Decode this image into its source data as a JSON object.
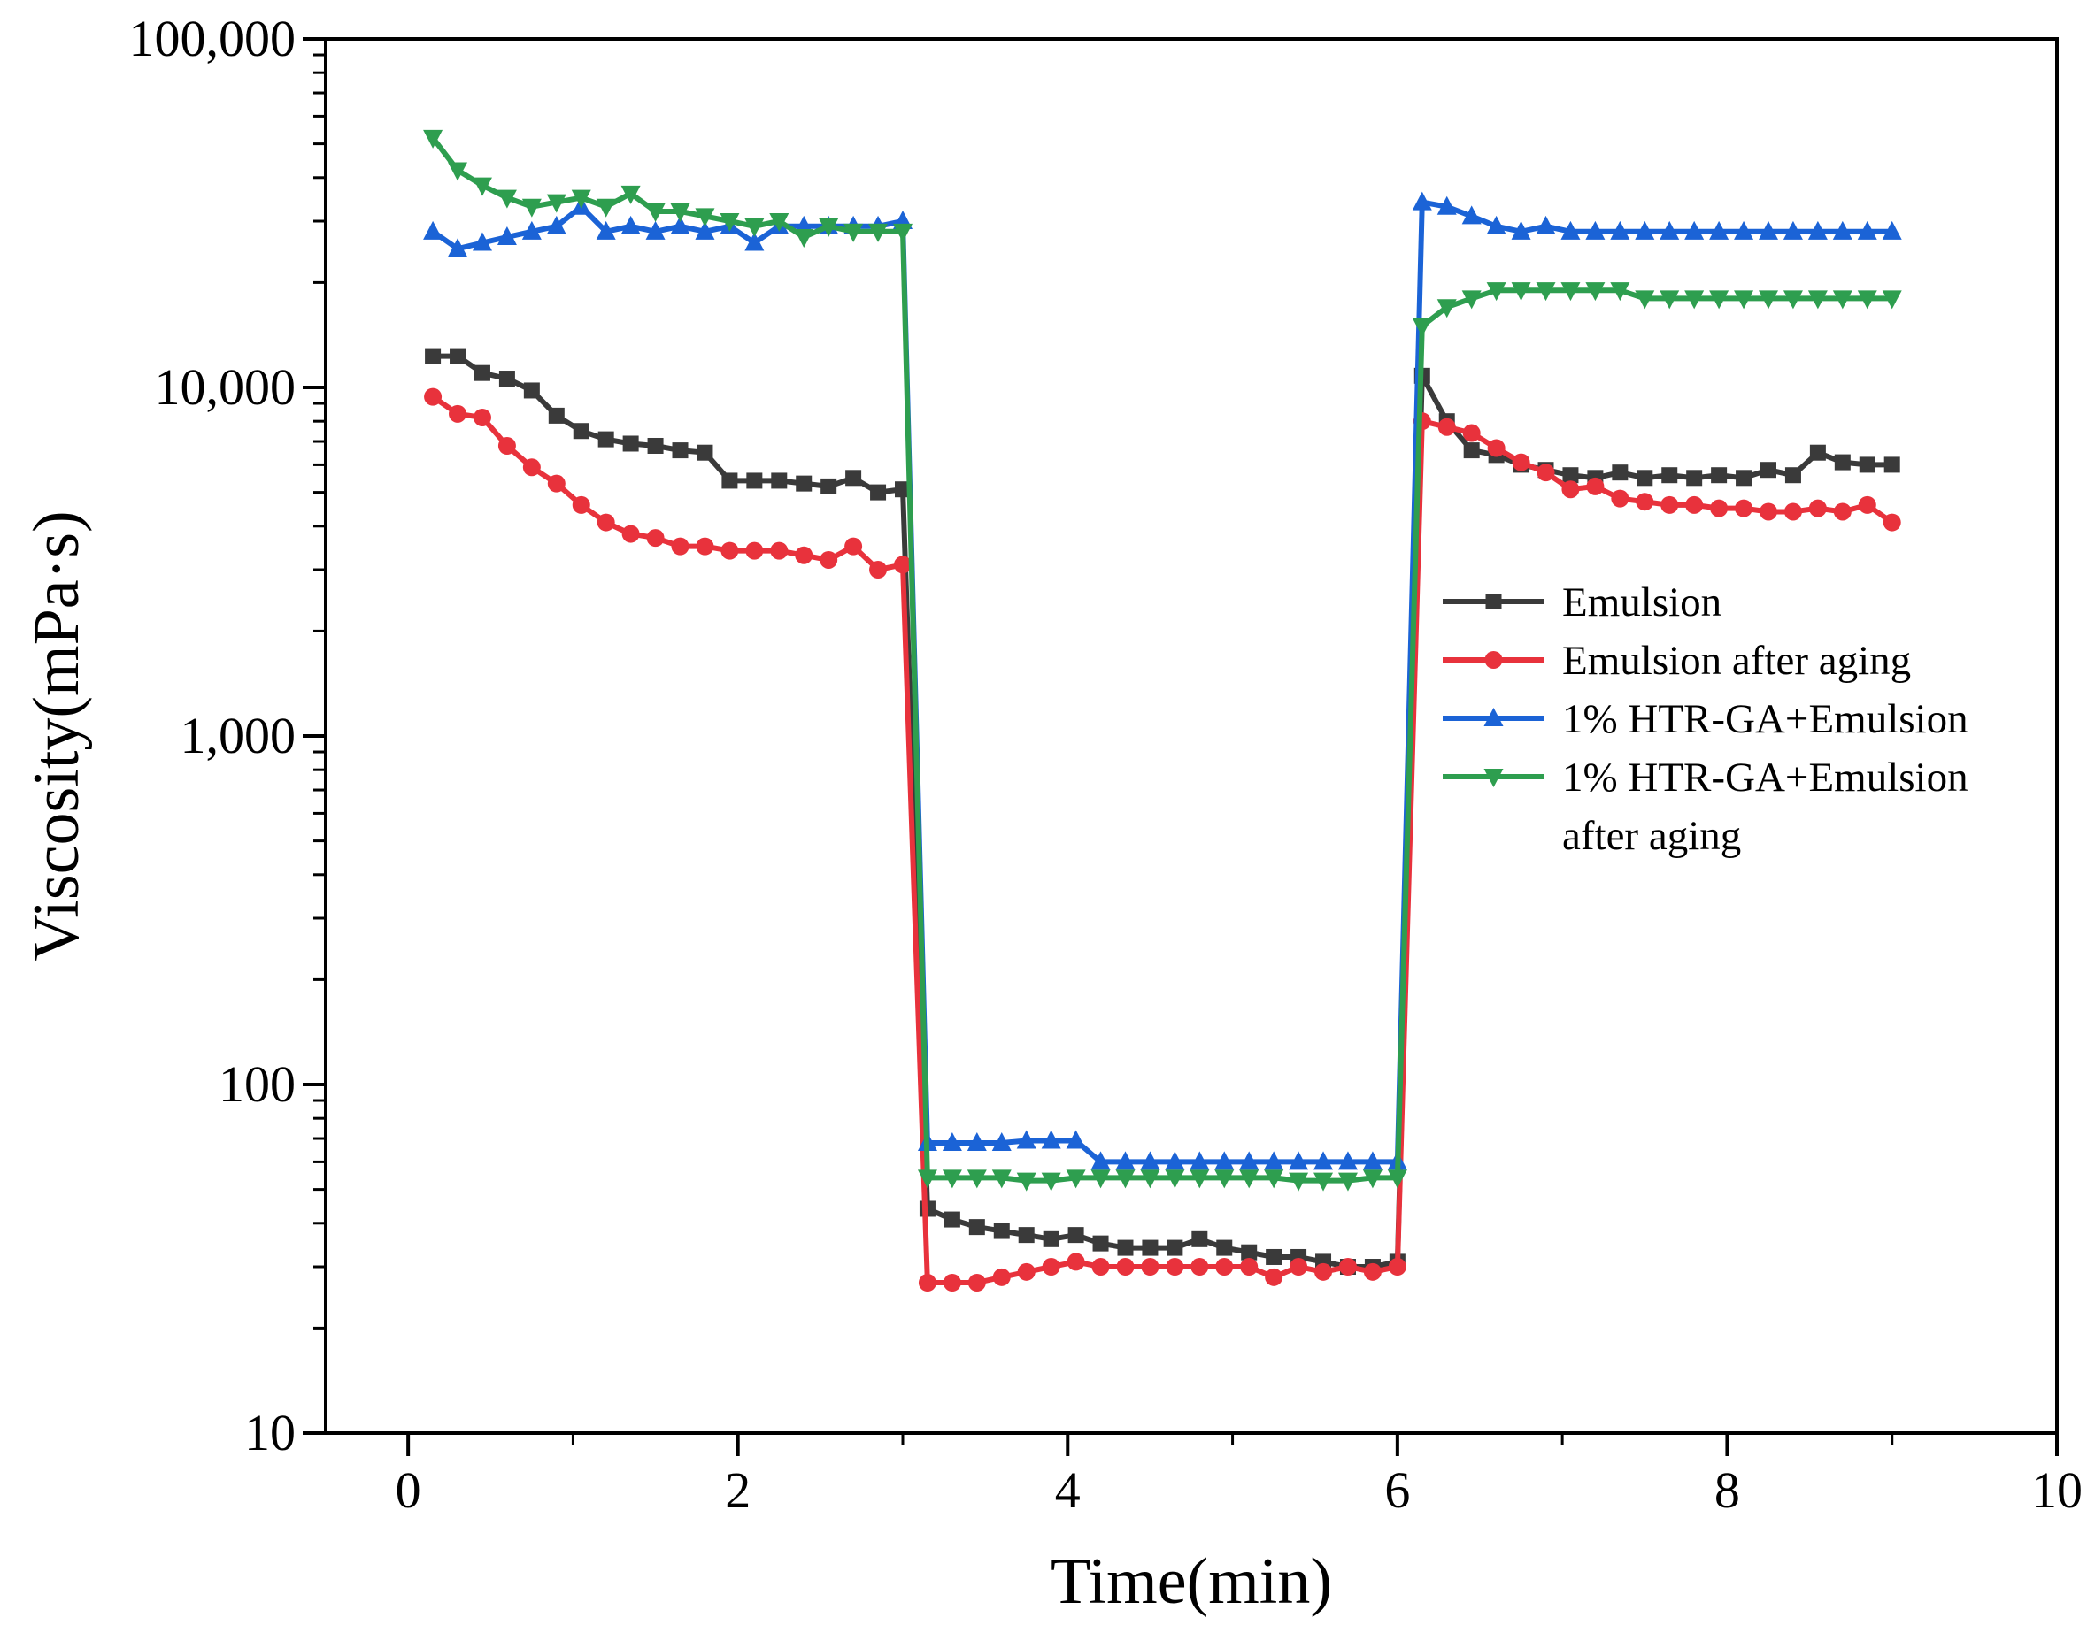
{
  "chart_data": {
    "type": "line",
    "title": "",
    "xlabel": "Time(min)",
    "ylabel": "Viscosity(mPa·s)",
    "xlim": [
      -0.5,
      10
    ],
    "ylim": [
      10,
      100000
    ],
    "yscale": "log",
    "grid": false,
    "legend_position": "right",
    "x_ticks": [
      0,
      2,
      4,
      6,
      8,
      10
    ],
    "x_tick_labels": [
      "0",
      "2",
      "4",
      "6",
      "8",
      "10"
    ],
    "y_ticks": [
      10,
      100,
      1000,
      10000,
      100000
    ],
    "y_tick_labels": [
      "10",
      "100",
      "1,000",
      "10,000",
      "100,000"
    ],
    "x": [
      0.15,
      0.3,
      0.45,
      0.6,
      0.75,
      0.9,
      1.05,
      1.2,
      1.35,
      1.5,
      1.65,
      1.8,
      1.95,
      2.1,
      2.25,
      2.4,
      2.55,
      2.7,
      2.85,
      3.0,
      3.15,
      3.3,
      3.45,
      3.6,
      3.75,
      3.9,
      4.05,
      4.2,
      4.35,
      4.5,
      4.65,
      4.8,
      4.95,
      5.1,
      5.25,
      5.4,
      5.55,
      5.7,
      5.85,
      6.0,
      6.15,
      6.3,
      6.45,
      6.6,
      6.75,
      6.9,
      7.05,
      7.2,
      7.35,
      7.5,
      7.65,
      7.8,
      7.95,
      8.1,
      8.25,
      8.4,
      8.55,
      8.7,
      8.85,
      9.0
    ],
    "series": [
      {
        "name": "Emulsion",
        "color": "#3a3a3a",
        "marker": "square",
        "values": [
          12300,
          12300,
          11000,
          10600,
          9800,
          8300,
          7500,
          7100,
          6900,
          6800,
          6600,
          6500,
          5400,
          5400,
          5400,
          5300,
          5200,
          5500,
          5000,
          5100,
          44,
          41,
          39,
          38,
          37,
          36,
          37,
          35,
          34,
          34,
          34,
          36,
          34,
          33,
          32,
          32,
          31,
          30,
          30,
          31,
          10800,
          8000,
          6600,
          6400,
          6000,
          5800,
          5600,
          5500,
          5700,
          5500,
          5600,
          5500,
          5600,
          5500,
          5800,
          5600,
          6500,
          6100,
          6000,
          6000
        ]
      },
      {
        "name": "Emulsion after aging",
        "color": "#e8323c",
        "marker": "circle",
        "values": [
          9400,
          8400,
          8200,
          6800,
          5900,
          5300,
          4600,
          4100,
          3800,
          3700,
          3500,
          3500,
          3400,
          3400,
          3400,
          3300,
          3200,
          3500,
          3000,
          3100,
          27,
          27,
          27,
          28,
          29,
          30,
          31,
          30,
          30,
          30,
          30,
          30,
          30,
          30,
          28,
          30,
          29,
          30,
          29,
          30,
          8000,
          7700,
          7400,
          6700,
          6100,
          5700,
          5100,
          5200,
          4800,
          4700,
          4600,
          4600,
          4500,
          4500,
          4400,
          4400,
          4500,
          4400,
          4600,
          4100
        ]
      },
      {
        "name": "1% HTR-GA+Emulsion",
        "color": "#1b63d6",
        "marker": "triangle-up",
        "values": [
          28000,
          25000,
          26000,
          27000,
          28000,
          29000,
          33000,
          28000,
          29000,
          28000,
          29000,
          28000,
          29000,
          26000,
          29000,
          29000,
          29000,
          29000,
          29000,
          30000,
          68,
          68,
          68,
          68,
          69,
          69,
          69,
          60,
          60,
          60,
          60,
          60,
          60,
          60,
          60,
          60,
          60,
          60,
          60,
          60,
          34000,
          33000,
          31000,
          29000,
          28000,
          29000,
          28000,
          28000,
          28000,
          28000,
          28000,
          28000,
          28000,
          28000,
          28000,
          28000,
          28000,
          28000,
          28000,
          28000
        ]
      },
      {
        "name": "1% HTR-GA+Emulsion after aging",
        "legend_lines": [
          "1% HTR-GA+Emulsion",
          "after aging"
        ],
        "color": "#2e9e4f",
        "marker": "triangle-down",
        "values": [
          52000,
          42000,
          38000,
          35000,
          33000,
          34000,
          35000,
          33000,
          36000,
          32000,
          32000,
          31000,
          30000,
          29000,
          30000,
          27000,
          29000,
          28000,
          28000,
          28000,
          54,
          54,
          54,
          54,
          53,
          53,
          54,
          54,
          54,
          54,
          54,
          54,
          54,
          54,
          54,
          53,
          53,
          53,
          54,
          54,
          15000,
          17000,
          18000,
          19000,
          19000,
          19000,
          19000,
          19000,
          19000,
          18000,
          18000,
          18000,
          18000,
          18000,
          18000,
          18000,
          18000,
          18000,
          18000,
          18000
        ]
      }
    ]
  }
}
